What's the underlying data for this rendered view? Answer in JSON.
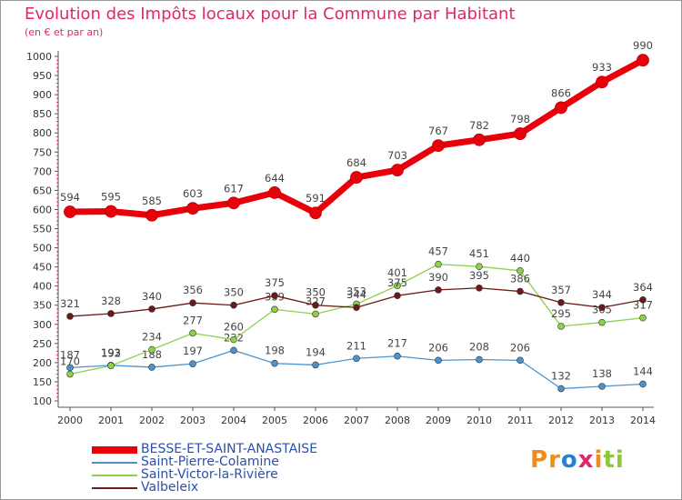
{
  "title": "Evolution des Impôts locaux pour la Commune par Habitant",
  "subtitle": "(en € et par an)",
  "logo": {
    "text": "Proxiti",
    "letters": [
      "P",
      "r",
      "o",
      "x",
      "i",
      "t",
      "i"
    ],
    "colors": [
      "#f08c1a",
      "#f08c1a",
      "#2a7fd0",
      "#e0266e",
      "#f08c1a",
      "#8dc63f",
      "#8dc63f"
    ]
  },
  "chart_data": {
    "type": "line",
    "title": "Evolution des Impôts locaux pour la Commune par Habitant",
    "xlabel": "",
    "ylabel": "",
    "ylim": [
      100,
      1000
    ],
    "yticks": [
      100,
      150,
      200,
      250,
      300,
      350,
      400,
      450,
      500,
      550,
      600,
      650,
      700,
      750,
      800,
      850,
      900,
      950,
      1000
    ],
    "grid": false,
    "legend_position": "bottom-left",
    "x": [
      "2000",
      "2001",
      "2002",
      "2003",
      "2004",
      "2005",
      "2006",
      "2007",
      "2008",
      "2009",
      "2010",
      "2011",
      "2012",
      "2013",
      "2014"
    ],
    "series": [
      {
        "name": "BESSE-ET-SAINT-ANASTAISE",
        "color": "#e8000b",
        "values": [
          594,
          595,
          585,
          603,
          617,
          644,
          591,
          684,
          703,
          767,
          782,
          798,
          866,
          933,
          990
        ]
      },
      {
        "name": "Saint-Pierre-Colamine",
        "color": "#4b93cf",
        "values": [
          187,
          193,
          188,
          197,
          232,
          198,
          194,
          211,
          217,
          206,
          208,
          206,
          132,
          138,
          144
        ]
      },
      {
        "name": "Saint-Victor-la-Rivière",
        "color": "#8fd04a",
        "values": [
          170,
          192,
          234,
          277,
          260,
          339,
          327,
          353,
          401,
          457,
          451,
          440,
          295,
          305,
          317
        ]
      },
      {
        "name": "Valbeleix",
        "color": "#6b1a1a",
        "values": [
          321,
          328,
          340,
          356,
          350,
          375,
          350,
          344,
          375,
          390,
          395,
          386,
          357,
          344,
          364
        ]
      }
    ]
  }
}
